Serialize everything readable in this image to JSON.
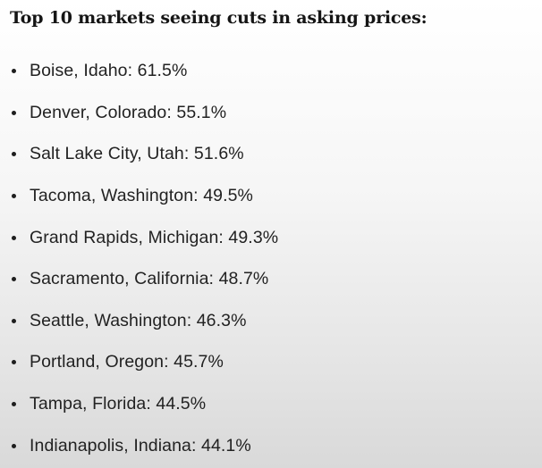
{
  "heading": "Top 10 markets seeing cuts in asking prices:",
  "items": [
    "Boise, Idaho: 61.5%",
    "Denver, Colorado: 55.1%",
    "Salt Lake City, Utah: 51.6%",
    "Tacoma, Washington: 49.5%",
    "Grand Rapids, Michigan: 49.3%",
    "Sacramento, California: 48.7%",
    "Seattle, Washington: 46.3%",
    "Portland, Oregon: 45.7%",
    "Tampa, Florida: 44.5%",
    "Indianapolis, Indiana: 44.1%"
  ]
}
